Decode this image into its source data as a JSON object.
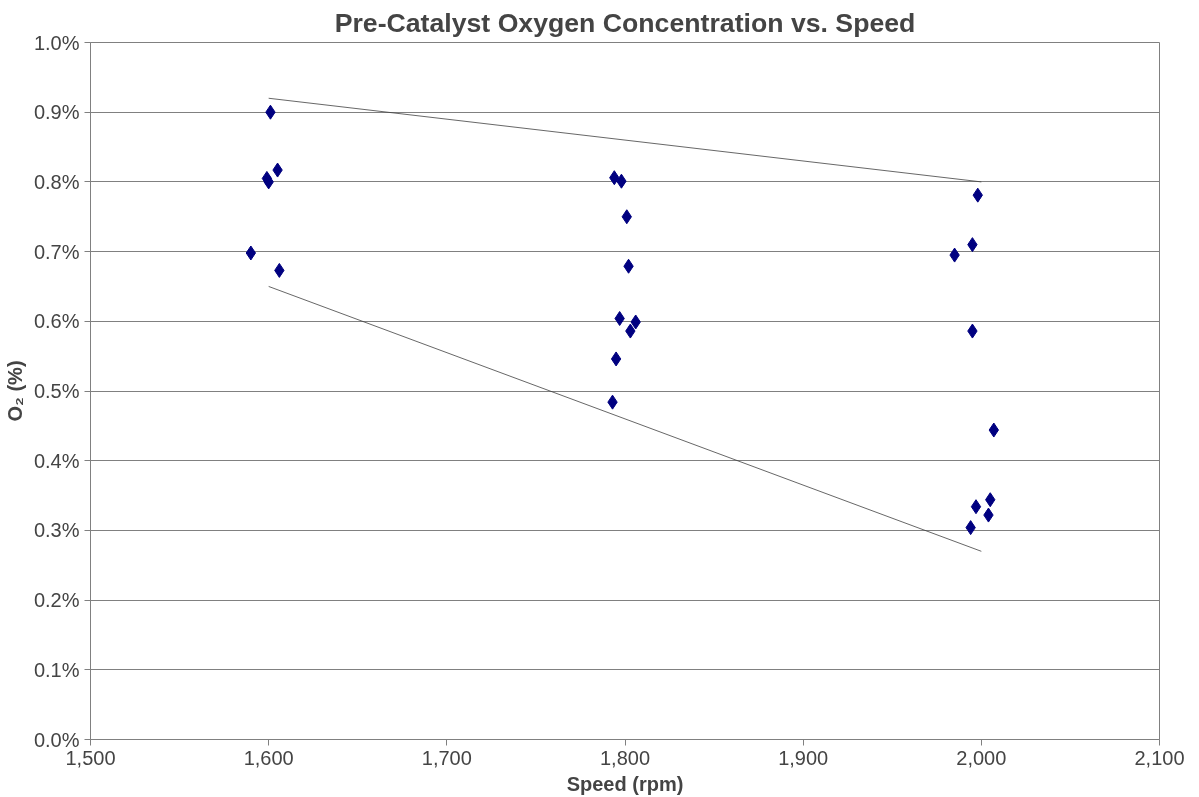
{
  "chart_data": {
    "type": "scatter",
    "title": "Pre-Catalyst Oxygen Concentration vs. Speed",
    "xlabel": "Speed (rpm)",
    "ylabel": "O₂ (%)",
    "xlim": [
      1500,
      2100
    ],
    "ylim": [
      0,
      1.0
    ],
    "xticks": [
      {
        "value": 1500,
        "label": "1,500"
      },
      {
        "value": 1600,
        "label": "1,600"
      },
      {
        "value": 1700,
        "label": "1,700"
      },
      {
        "value": 1800,
        "label": "1,800"
      },
      {
        "value": 1900,
        "label": "1,900"
      },
      {
        "value": 2000,
        "label": "2,000"
      },
      {
        "value": 2100,
        "label": "2,100"
      }
    ],
    "yticks": [
      {
        "value": 0,
        "label": "0.0%"
      },
      {
        "value": 0.1,
        "label": "0.1%"
      },
      {
        "value": 0.2,
        "label": "0.2%"
      },
      {
        "value": 0.3,
        "label": "0.3%"
      },
      {
        "value": 0.4,
        "label": "0.4%"
      },
      {
        "value": 0.5,
        "label": "0.5%"
      },
      {
        "value": 0.6,
        "label": "0.6%"
      },
      {
        "value": 0.7,
        "label": "0.7%"
      },
      {
        "value": 0.8,
        "label": "0.8%"
      },
      {
        "value": 0.9,
        "label": "0.9%"
      },
      {
        "value": 1.0,
        "label": "1.0%"
      }
    ],
    "grid": "y",
    "series": [
      {
        "marker": "diamond",
        "color": "#000080",
        "x": [
          1601,
          1599,
          1600,
          1605,
          1590,
          1606,
          1794,
          1798,
          1801,
          1802,
          1797,
          1806,
          1803,
          1795,
          1793,
          1998,
          1985,
          1995,
          1995,
          2007,
          2005,
          1997,
          2004,
          1994
        ],
        "values": [
          0.9,
          0.805,
          0.8,
          0.817,
          0.698,
          0.673,
          0.806,
          0.801,
          0.75,
          0.679,
          0.604,
          0.599,
          0.586,
          0.546,
          0.484,
          0.781,
          0.695,
          0.71,
          0.586,
          0.444,
          0.344,
          0.334,
          0.322,
          0.304
        ]
      },
      {
        "type": "line",
        "marker": "none",
        "color": "#404040",
        "x": [
          1600,
          2000
        ],
        "values": [
          0.92,
          0.8
        ]
      },
      {
        "type": "line",
        "marker": "none",
        "color": "#404040",
        "x": [
          1600,
          2000
        ],
        "values": [
          0.65,
          0.27
        ]
      }
    ]
  }
}
